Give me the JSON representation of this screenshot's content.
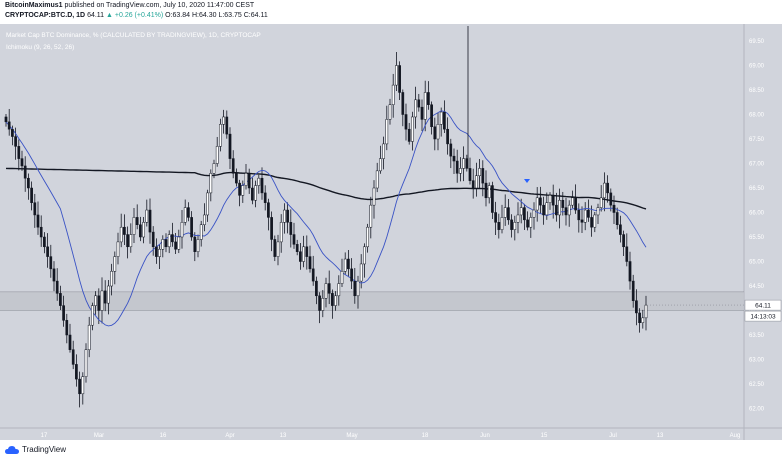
{
  "header": {
    "publisher": "BitcoinMaximus1",
    "published_text": "published on TradingView.com, July 10, 2020 11:47:00 CEST",
    "symbol": "CRYPTOCAP:BTC.D, 1D",
    "last": "64.11",
    "change": "▲ +0.26 (+0.41%)",
    "ohlc": "O:63.84 H:64.30 L:63.75 C:64.11"
  },
  "legend": {
    "title": "Market Cap BTC Dominance, % (CALCULATED BY TRADINGVIEW), 1D, CRYPTOCAP",
    "indicator": "Ichimoku (9, 26, 52, 26)"
  },
  "price_label": "64.11",
  "countdown": "14:13:03",
  "footer": {
    "brand": "TradingView"
  },
  "colors": {
    "chart_bg": "#d1d4dc",
    "candle": "#131722",
    "ma_long": "#131722",
    "ma_short": "#3a53c5",
    "support_zone": "#c2c4cb",
    "marker": "#2962ff",
    "up_text": "#26a69a"
  },
  "chart_data": {
    "type": "candlestick",
    "y_axis_ticks": [
      "69.50",
      "69.00",
      "68.50",
      "68.00",
      "67.50",
      "67.00",
      "66.50",
      "66.00",
      "65.50",
      "65.00",
      "64.50",
      "64.00",
      "63.50",
      "63.00",
      "62.50",
      "62.00"
    ],
    "ylim": [
      62.0,
      69.8
    ],
    "x_axis_ticks": [
      "17",
      "Mar",
      "16",
      "Apr",
      "13",
      "May",
      "18",
      "Jun",
      "15",
      "Jul",
      "13",
      "Aug"
    ],
    "close_prices": [
      67.85,
      67.7,
      67.55,
      67.35,
      67.1,
      66.95,
      66.7,
      66.5,
      66.2,
      65.95,
      65.7,
      65.5,
      65.3,
      65.1,
      64.85,
      64.6,
      64.35,
      64.1,
      63.8,
      63.5,
      63.2,
      62.9,
      62.6,
      62.3,
      62.65,
      63.2,
      63.7,
      64.1,
      64.3,
      64.0,
      64.4,
      64.15,
      64.5,
      64.8,
      65.1,
      65.4,
      65.7,
      65.55,
      65.3,
      65.55,
      65.9,
      65.75,
      65.5,
      65.8,
      66.05,
      65.6,
      65.3,
      65.1,
      65.25,
      65.45,
      65.3,
      65.55,
      65.4,
      65.25,
      65.5,
      65.8,
      66.1,
      65.9,
      65.5,
      65.2,
      65.45,
      65.75,
      65.95,
      66.4,
      66.8,
      67.0,
      67.35,
      67.8,
      67.95,
      67.6,
      67.1,
      66.8,
      66.6,
      66.35,
      66.55,
      66.8,
      66.5,
      66.25,
      66.55,
      66.7,
      66.4,
      66.2,
      65.9,
      65.45,
      65.1,
      65.4,
      65.8,
      66.05,
      65.8,
      65.55,
      65.35,
      65.2,
      65.0,
      65.3,
      65.1,
      64.85,
      64.6,
      64.3,
      64.0,
      64.25,
      64.55,
      64.35,
      64.1,
      64.3,
      64.55,
      64.8,
      65.05,
      64.85,
      64.6,
      64.3,
      64.6,
      64.95,
      65.3,
      65.7,
      66.15,
      66.5,
      66.85,
      67.1,
      67.4,
      67.9,
      68.2,
      68.6,
      69.0,
      68.45,
      68.0,
      67.7,
      67.45,
      67.95,
      68.3,
      68.15,
      67.9,
      68.45,
      68.2,
      67.75,
      67.5,
      67.8,
      68.05,
      67.7,
      67.4,
      67.15,
      67.05,
      66.8,
      66.9,
      67.1,
      66.9,
      66.65,
      66.5,
      66.75,
      66.9,
      66.6,
      66.3,
      66.55,
      66.0,
      65.8,
      65.65,
      65.9,
      66.1,
      65.85,
      65.65,
      65.8,
      65.95,
      66.1,
      65.85,
      65.7,
      65.9,
      66.05,
      66.3,
      66.15,
      65.95,
      66.2,
      66.35,
      66.15,
      65.95,
      66.25,
      66.1,
      65.95,
      66.15,
      66.3,
      66.05,
      65.85,
      65.8,
      66.05,
      65.9,
      65.7,
      65.95,
      66.1,
      66.3,
      66.6,
      66.4,
      66.15,
      66.0,
      65.75,
      65.55,
      65.3,
      65.0,
      64.6,
      64.2,
      63.95,
      63.75,
      63.85,
      64.11
    ]
  }
}
